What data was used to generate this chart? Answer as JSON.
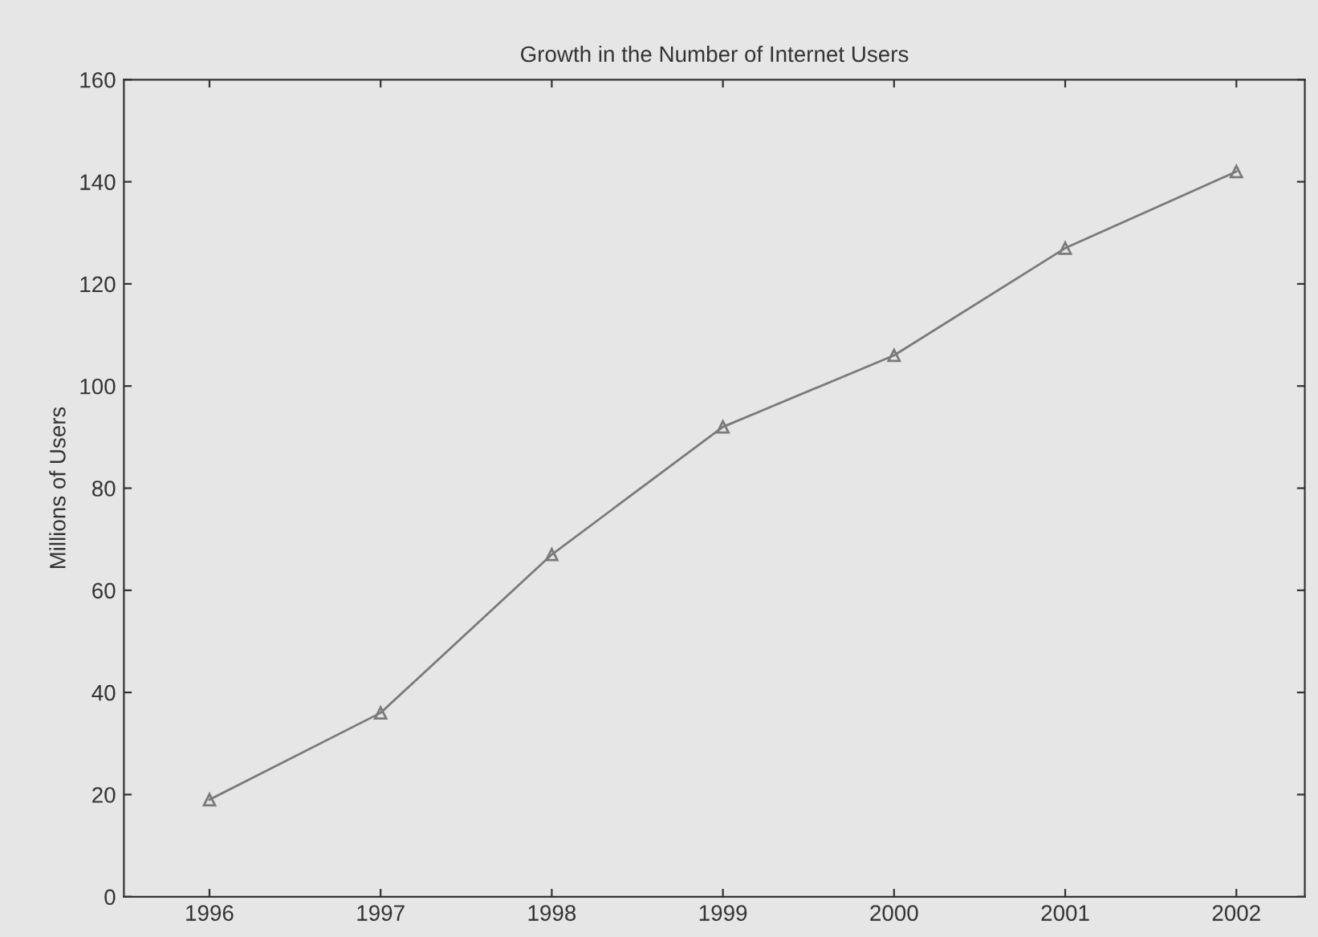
{
  "chart_data": {
    "type": "line",
    "title": "Growth in the Number of Internet Users",
    "ylabel": "Millions of Users",
    "x": [
      1996,
      1997,
      1998,
      1999,
      2000,
      2001,
      2002
    ],
    "series": [
      {
        "color": "#7a7a7a",
        "values": [
          19,
          36,
          67,
          92,
          106,
          127,
          142
        ]
      }
    ],
    "xlim": [
      1995.5,
      2002.4
    ],
    "xticks": [
      1996,
      1997,
      1998,
      1999,
      2000,
      2001,
      2002
    ],
    "ylim": [
      0,
      160
    ],
    "yticks": [
      0,
      20,
      40,
      60,
      80,
      100,
      120,
      140,
      160
    ],
    "grid": false,
    "legend": false,
    "marker": "triangle",
    "line_style": "solid"
  }
}
